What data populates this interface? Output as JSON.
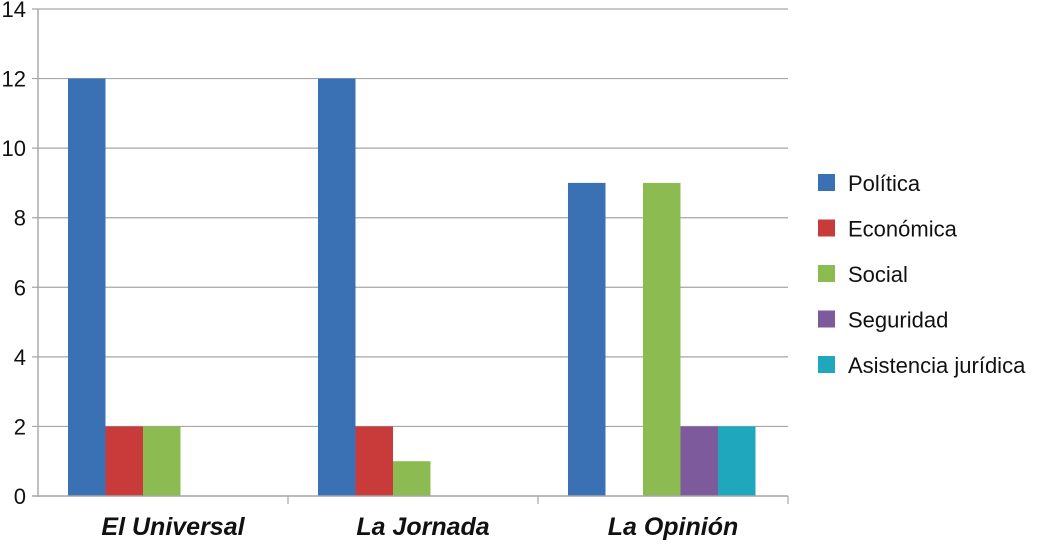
{
  "chart_data": {
    "type": "bar",
    "categories": [
      "El Universal",
      "La Jornada",
      "La Opinión"
    ],
    "series": [
      {
        "name": "Política",
        "values": [
          12,
          12,
          9
        ],
        "color": "#3a71b4"
      },
      {
        "name": "Económica",
        "values": [
          2,
          2,
          0
        ],
        "color": "#c93b3b"
      },
      {
        "name": "Social",
        "values": [
          2,
          1,
          9
        ],
        "color": "#8cbc51"
      },
      {
        "name": "Seguridad",
        "values": [
          0,
          0,
          2
        ],
        "color": "#7d5a9c"
      },
      {
        "name": "Asistencia jurídica",
        "values": [
          0,
          0,
          2
        ],
        "color": "#1fa7bd"
      }
    ],
    "title": "",
    "xlabel": "",
    "ylabel": "",
    "ylim": [
      0,
      14
    ],
    "yticks": [
      0,
      2,
      4,
      6,
      8,
      10,
      12,
      14
    ],
    "grid": true,
    "legend_position": "right"
  }
}
